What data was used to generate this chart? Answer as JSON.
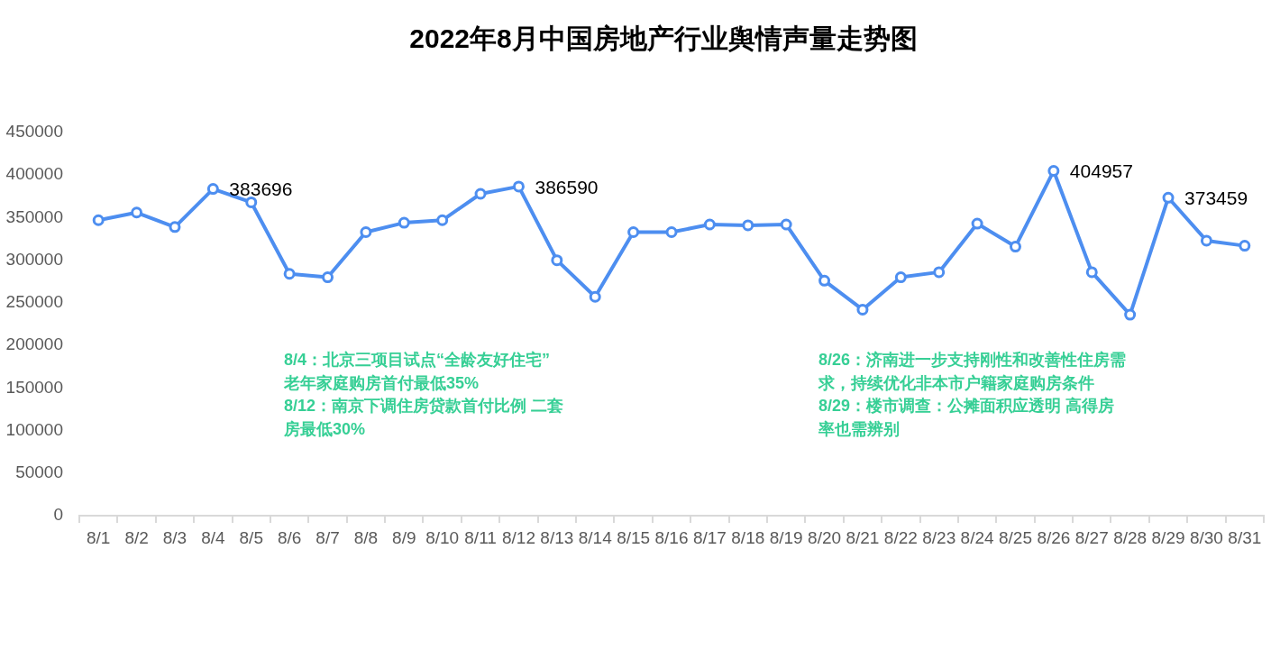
{
  "chart_data": {
    "type": "line",
    "title": "2022年8月中国房地产行业舆情声量走势图",
    "categories": [
      "8/1",
      "8/2",
      "8/3",
      "8/4",
      "8/5",
      "8/6",
      "8/7",
      "8/8",
      "8/9",
      "8/10",
      "8/11",
      "8/12",
      "8/13",
      "8/14",
      "8/15",
      "8/16",
      "8/17",
      "8/18",
      "8/19",
      "8/20",
      "8/21",
      "8/22",
      "8/23",
      "8/24",
      "8/25",
      "8/26",
      "8/27",
      "8/28",
      "8/29",
      "8/30",
      "8/31"
    ],
    "values": [
      347000,
      356000,
      339000,
      383696,
      368000,
      284000,
      280000,
      333000,
      344000,
      347000,
      378000,
      386590,
      300000,
      257000,
      333000,
      333000,
      342000,
      341000,
      342000,
      276000,
      242000,
      280000,
      286000,
      343000,
      316000,
      404957,
      286000,
      236000,
      373459,
      323000,
      317000
    ],
    "value_labels": [
      null,
      null,
      null,
      "383696",
      null,
      null,
      null,
      null,
      null,
      null,
      null,
      "386590",
      null,
      null,
      null,
      null,
      null,
      null,
      null,
      null,
      null,
      null,
      null,
      null,
      null,
      "404957",
      null,
      null,
      "373459",
      null,
      null
    ],
    "color": "#4d8ef0",
    "ylim": [
      0,
      450000
    ],
    "yticks": [
      0,
      50000,
      100000,
      150000,
      200000,
      250000,
      300000,
      350000,
      400000,
      450000
    ],
    "grid": false,
    "legend": false,
    "marker": "circle",
    "line_style": "solid",
    "annotations": [
      "8/4：北京三项目试点“全龄友好住宅”老年家庭购房首付最低35%",
      "8/12：南京下调住房贷款首付比例 二套房最低30%",
      "8/26：济南进一步支持刚性和改善性住房需求，持续优化非本市户籍家庭购房条件",
      "8/29：楼市调查：公摊面积应透明 高得房率也需辨别"
    ]
  }
}
